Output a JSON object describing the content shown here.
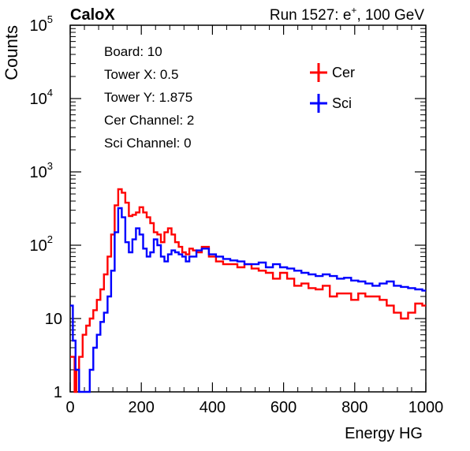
{
  "header": {
    "left_label": "CaloX",
    "run_prefix": "Run 1527: e",
    "run_sup": "+",
    "run_suffix": ", 100 GeV"
  },
  "info_box": {
    "lines": [
      "Board: 10",
      "Tower X: 0.5",
      "Tower Y: 1.875",
      "Cer Channel: 2",
      "Sci Channel: 0"
    ]
  },
  "legend": [
    {
      "label": "Cer",
      "color": "#ff0000"
    },
    {
      "label": "Sci",
      "color": "#0000ff"
    }
  ],
  "chart_data": {
    "type": "line",
    "xlabel": "Energy HG",
    "ylabel": "Counts",
    "xlim": [
      0,
      1000
    ],
    "ylim": [
      1,
      100000
    ],
    "yscale": "log",
    "grid": false,
    "legend_position": "top-right",
    "x_ticks": [
      "0",
      "200",
      "400",
      "600",
      "800",
      "1000"
    ],
    "y_ticks": [
      {
        "base": "1",
        "exp": ""
      },
      {
        "base": "10",
        "exp": ""
      },
      {
        "base": "10",
        "exp": "2"
      },
      {
        "base": "10",
        "exp": "3"
      },
      {
        "base": "10",
        "exp": "4"
      },
      {
        "base": "10",
        "exp": "5"
      }
    ],
    "series": [
      {
        "name": "Cer",
        "color": "#ff0000",
        "points": [
          [
            5,
            3
          ],
          [
            10,
            3
          ],
          [
            15,
            1
          ],
          [
            20,
            2
          ],
          [
            30,
            3
          ],
          [
            40,
            6
          ],
          [
            50,
            8
          ],
          [
            60,
            10
          ],
          [
            70,
            13
          ],
          [
            80,
            18
          ],
          [
            90,
            25
          ],
          [
            100,
            40
          ],
          [
            110,
            70
          ],
          [
            120,
            140
          ],
          [
            130,
            350
          ],
          [
            140,
            580
          ],
          [
            150,
            520
          ],
          [
            160,
            380
          ],
          [
            170,
            250
          ],
          [
            180,
            260
          ],
          [
            190,
            280
          ],
          [
            200,
            330
          ],
          [
            210,
            280
          ],
          [
            220,
            240
          ],
          [
            230,
            200
          ],
          [
            240,
            150
          ],
          [
            250,
            140
          ],
          [
            260,
            110
          ],
          [
            270,
            150
          ],
          [
            280,
            170
          ],
          [
            290,
            140
          ],
          [
            300,
            110
          ],
          [
            310,
            95
          ],
          [
            320,
            80
          ],
          [
            330,
            75
          ],
          [
            340,
            90
          ],
          [
            350,
            85
          ],
          [
            360,
            80
          ],
          [
            380,
            95
          ],
          [
            400,
            70
          ],
          [
            420,
            60
          ],
          [
            440,
            55
          ],
          [
            460,
            55
          ],
          [
            480,
            50
          ],
          [
            500,
            55
          ],
          [
            520,
            48
          ],
          [
            540,
            45
          ],
          [
            560,
            42
          ],
          [
            580,
            35
          ],
          [
            600,
            42
          ],
          [
            620,
            35
          ],
          [
            640,
            28
          ],
          [
            660,
            30
          ],
          [
            680,
            26
          ],
          [
            700,
            25
          ],
          [
            720,
            28
          ],
          [
            740,
            20
          ],
          [
            760,
            22
          ],
          [
            780,
            22
          ],
          [
            800,
            18
          ],
          [
            820,
            22
          ],
          [
            840,
            20
          ],
          [
            860,
            20
          ],
          [
            880,
            18
          ],
          [
            900,
            15
          ],
          [
            920,
            12
          ],
          [
            940,
            10
          ],
          [
            960,
            12
          ],
          [
            980,
            16
          ],
          [
            1000,
            15
          ]
        ]
      },
      {
        "name": "Sci",
        "color": "#0000ff",
        "points": [
          [
            5,
            15
          ],
          [
            10,
            5
          ],
          [
            20,
            2
          ],
          [
            30,
            1
          ],
          [
            40,
            1
          ],
          [
            50,
            1
          ],
          [
            60,
            2
          ],
          [
            70,
            4
          ],
          [
            80,
            6
          ],
          [
            90,
            9
          ],
          [
            100,
            12
          ],
          [
            110,
            20
          ],
          [
            120,
            45
          ],
          [
            130,
            150
          ],
          [
            140,
            320
          ],
          [
            150,
            240
          ],
          [
            160,
            110
          ],
          [
            170,
            80
          ],
          [
            180,
            120
          ],
          [
            190,
            170
          ],
          [
            200,
            140
          ],
          [
            210,
            90
          ],
          [
            220,
            70
          ],
          [
            230,
            80
          ],
          [
            240,
            120
          ],
          [
            250,
            100
          ],
          [
            260,
            70
          ],
          [
            270,
            60
          ],
          [
            280,
            75
          ],
          [
            290,
            85
          ],
          [
            300,
            80
          ],
          [
            310,
            75
          ],
          [
            320,
            70
          ],
          [
            330,
            60
          ],
          [
            340,
            70
          ],
          [
            350,
            70
          ],
          [
            360,
            85
          ],
          [
            380,
            90
          ],
          [
            400,
            75
          ],
          [
            420,
            70
          ],
          [
            440,
            65
          ],
          [
            460,
            62
          ],
          [
            480,
            60
          ],
          [
            500,
            55
          ],
          [
            520,
            55
          ],
          [
            540,
            58
          ],
          [
            560,
            50
          ],
          [
            580,
            55
          ],
          [
            600,
            50
          ],
          [
            620,
            48
          ],
          [
            640,
            45
          ],
          [
            660,
            42
          ],
          [
            680,
            40
          ],
          [
            700,
            38
          ],
          [
            720,
            40
          ],
          [
            740,
            38
          ],
          [
            760,
            35
          ],
          [
            780,
            36
          ],
          [
            800,
            33
          ],
          [
            820,
            32
          ],
          [
            840,
            30
          ],
          [
            860,
            28
          ],
          [
            880,
            30
          ],
          [
            900,
            32
          ],
          [
            920,
            28
          ],
          [
            940,
            27
          ],
          [
            960,
            26
          ],
          [
            980,
            25
          ],
          [
            1000,
            24
          ]
        ]
      }
    ]
  }
}
